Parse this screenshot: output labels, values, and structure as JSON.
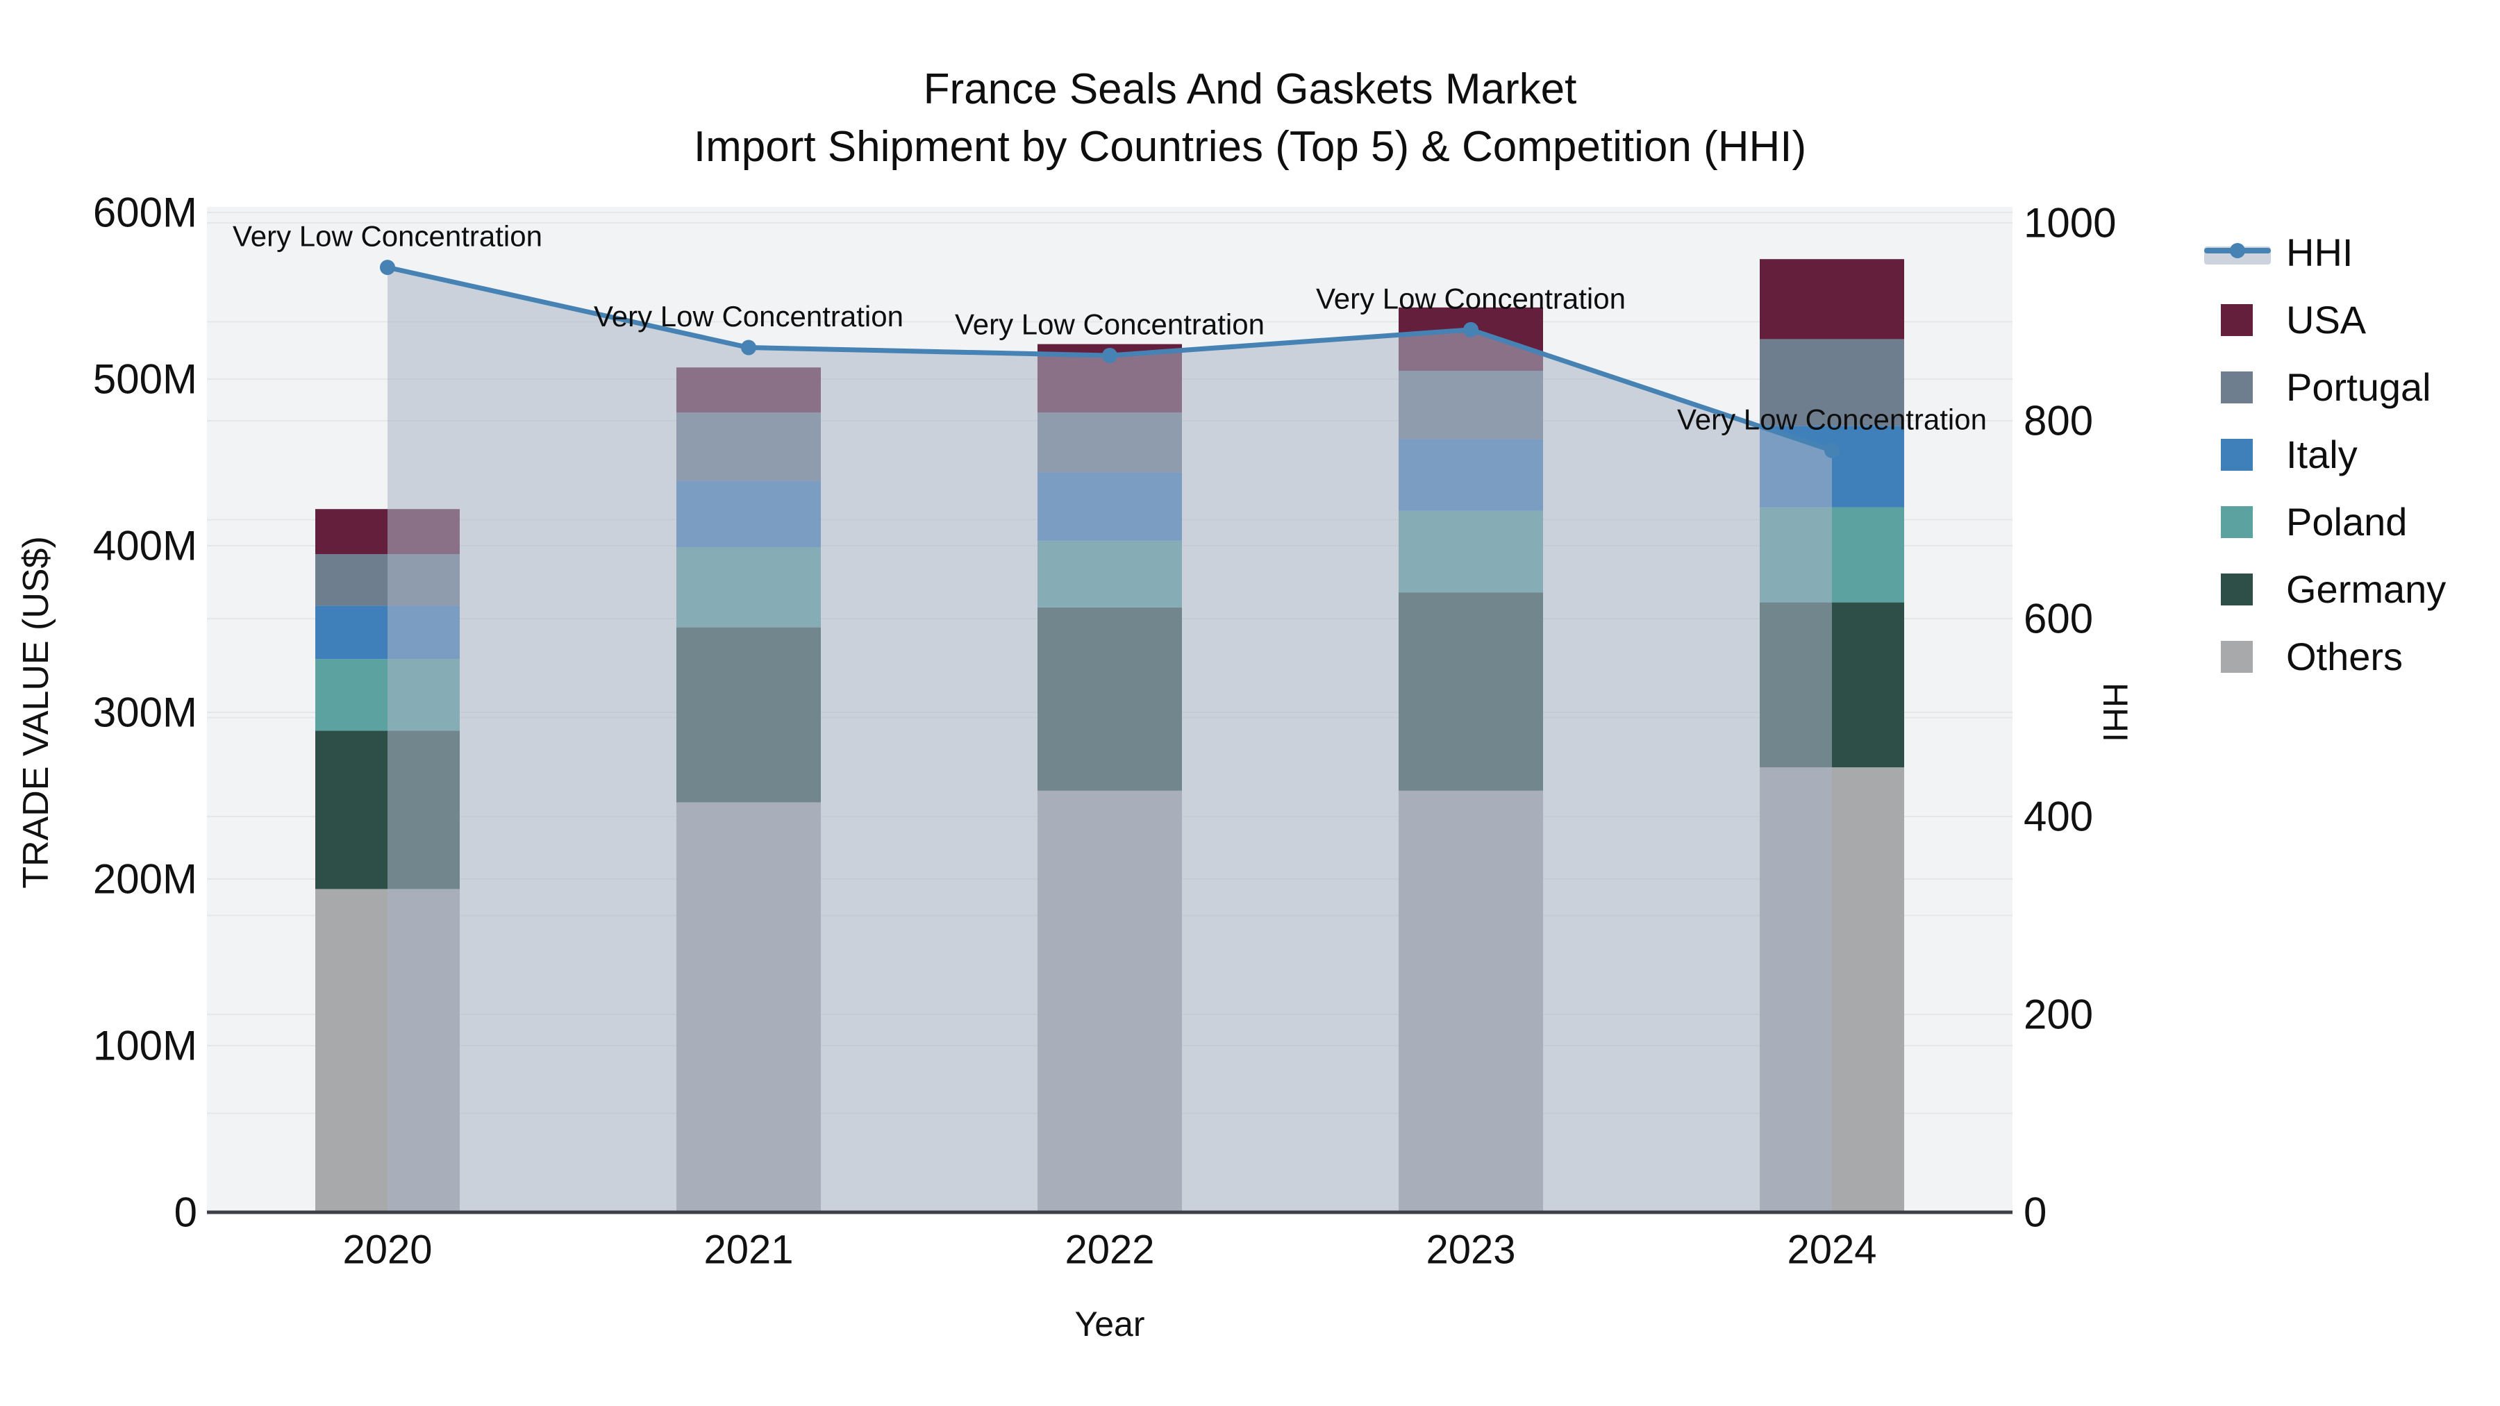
{
  "title": {
    "line1": "France Seals And Gaskets Market",
    "line2": "Import Shipment by Countries (Top 5) & Competition (HHI)"
  },
  "legend": {
    "items": [
      {
        "label": "HHI",
        "type": "line",
        "color": "#4682b4",
        "band": "#ccd3dc"
      },
      {
        "label": "USA",
        "type": "swatch",
        "color": "#641f3c"
      },
      {
        "label": "Portugal",
        "type": "swatch",
        "color": "#6f7e8e"
      },
      {
        "label": "Italy",
        "type": "swatch",
        "color": "#4080ba"
      },
      {
        "label": "Poland",
        "type": "swatch",
        "color": "#5ba2a0"
      },
      {
        "label": "Germany",
        "type": "swatch",
        "color": "#2d4f48"
      },
      {
        "label": "Others",
        "type": "swatch",
        "color": "#a7a9ab"
      }
    ]
  },
  "chart_data": {
    "type": "bar",
    "subtype": "stacked-bar-with-line-area-overlay",
    "categories": [
      "2020",
      "2021",
      "2022",
      "2023",
      "2024"
    ],
    "value_unit": "million US$",
    "series": [
      {
        "name": "Others",
        "color": "#a7a9ab",
        "values": [
          194,
          246,
          253,
          253,
          267
        ]
      },
      {
        "name": "Germany",
        "color": "#2d4f48",
        "values": [
          95,
          105,
          110,
          119,
          99
        ]
      },
      {
        "name": "Poland",
        "color": "#5ba2a0",
        "values": [
          43,
          48,
          40,
          49,
          57
        ]
      },
      {
        "name": "Italy",
        "color": "#4080ba",
        "values": [
          32,
          40,
          41,
          43,
          49
        ]
      },
      {
        "name": "Portugal",
        "color": "#6f7e8e",
        "values": [
          31,
          41,
          36,
          41,
          52
        ]
      },
      {
        "name": "USA",
        "color": "#641f3c",
        "values": [
          27,
          27,
          41,
          38,
          48
        ]
      }
    ],
    "totals": [
      422,
      507,
      521,
      543,
      572
    ],
    "hhi": {
      "name": "HHI",
      "line_color": "#4682b4",
      "area_fill": "rgba(170,180,198,0.55)",
      "values": [
        955,
        874,
        866,
        892,
        770
      ]
    },
    "annotations": {
      "text": "Very Low Concentration",
      "per_point": [
        {
          "year": "2020",
          "hhi": 955
        },
        {
          "year": "2021",
          "hhi": 874
        },
        {
          "year": "2022",
          "hhi": 866
        },
        {
          "year": "2023",
          "hhi": 892
        },
        {
          "year": "2024",
          "hhi": 770
        }
      ]
    },
    "x_axis": {
      "title": "Year",
      "tick_labels": [
        "2020",
        "2021",
        "2022",
        "2023",
        "2024"
      ]
    },
    "left_axis": {
      "title": "TRADE VALUE (US$)",
      "range": [
        0,
        600
      ],
      "tick_values": [
        0,
        100,
        200,
        300,
        400,
        500,
        600
      ],
      "tick_labels": [
        "0",
        "100M",
        "200M",
        "300M",
        "400M",
        "500M",
        "600M"
      ]
    },
    "right_axis": {
      "title": "HHI",
      "range": [
        0,
        1000
      ],
      "tick_values": [
        0,
        200,
        400,
        600,
        800,
        1000
      ],
      "tick_labels": [
        "0",
        "200",
        "400",
        "600",
        "800",
        "1000"
      ],
      "grid_step": 100
    },
    "style": {
      "plot_bg": "#f2f3f4",
      "grid_color": "#e5e7e9",
      "axis_line_color": "#3c4046",
      "text_color": "#111111",
      "legend_position": "right",
      "grid_on": true
    }
  }
}
